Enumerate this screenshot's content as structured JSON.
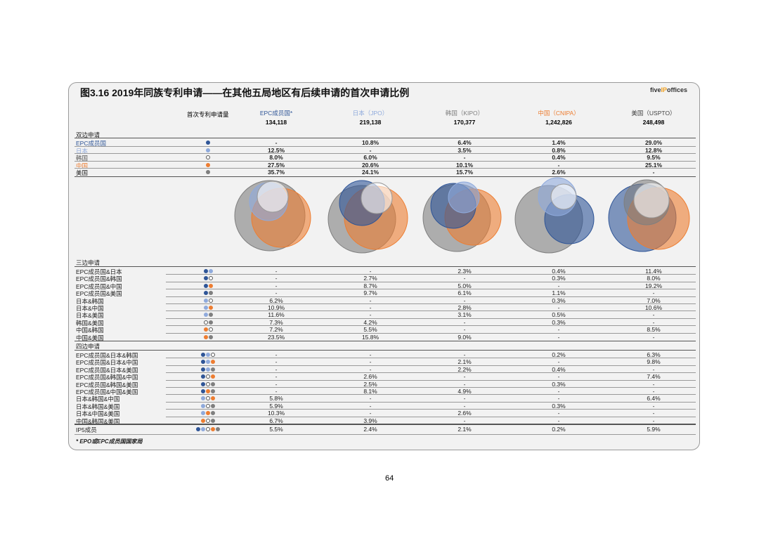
{
  "title": "图3.16 2019年同族专利申请——在其他五局地区有后续申请的首次申请比例",
  "logo": {
    "pre": "five",
    "ip": "IP",
    "post": "offices"
  },
  "header": {
    "label": "首次专利申请量",
    "columns": [
      {
        "name": "EPC成员国*",
        "count": "134,118",
        "color": "#2f5597"
      },
      {
        "name": "日本（JPO）",
        "count": "219,138",
        "color": "#8faadc"
      },
      {
        "name": "韩国（KIPO）",
        "count": "170,377",
        "color": "#7f7f7f"
      },
      {
        "name": "中国（CNIPA）",
        "count": "1,242,826",
        "color": "#ed7d31"
      },
      {
        "name": "美国（USPTO）",
        "count": "248,498",
        "color": "#404040"
      }
    ]
  },
  "colors": {
    "E": "#2f5597",
    "J": "#8faadc",
    "K": "#ffffff",
    "C": "#ed7d31",
    "U": "#7f7f7f"
  },
  "sections": [
    {
      "title": "双边申请",
      "rows": [
        {
          "label": "EPC成员国",
          "dots": "E",
          "values": [
            "-",
            "10.8%",
            "6.4%",
            "1.4%",
            "29.0%"
          ],
          "color": "#2f5597"
        },
        {
          "label": "日本",
          "dots": "J",
          "values": [
            "12.5%",
            "-",
            "3.5%",
            "0.8%",
            "12.8%"
          ],
          "color": "#8faadc"
        },
        {
          "label": "韩国",
          "dots": "K",
          "values": [
            "8.0%",
            "6.0%",
            "-",
            "0.4%",
            "9.5%"
          ],
          "color": "#555"
        },
        {
          "label": "中国",
          "dots": "C",
          "values": [
            "27.5%",
            "20.6%",
            "10.1%",
            "-",
            "25.1%"
          ],
          "color": "#ed7d31"
        },
        {
          "label": "美国",
          "dots": "U",
          "values": [
            "35.7%",
            "24.1%",
            "15.7%",
            "2.6%",
            "-"
          ],
          "color": "#222"
        }
      ]
    },
    {
      "title": "三边申请",
      "rows": [
        {
          "label": "EPC成员国&日本",
          "dots": "EJ",
          "values": [
            "-",
            "-",
            "2.3%",
            "0.4%",
            "11.4%"
          ]
        },
        {
          "label": "EPC成员国&韩国",
          "dots": "EK",
          "values": [
            "-",
            "2.7%",
            "-",
            "0.3%",
            "8.0%"
          ]
        },
        {
          "label": "EPC成员国&中国",
          "dots": "EC",
          "values": [
            "-",
            "8.7%",
            "5.0%",
            "-",
            "19.2%"
          ]
        },
        {
          "label": "EPC成员国&美国",
          "dots": "EU",
          "values": [
            "-",
            "9.7%",
            "6.1%",
            "1.1%",
            "-"
          ]
        },
        {
          "label": "日本&韩国",
          "dots": "JK",
          "values": [
            "6.2%",
            "-",
            "-",
            "0.3%",
            "7.0%"
          ]
        },
        {
          "label": "日本&中国",
          "dots": "JC",
          "values": [
            "10.9%",
            "-",
            "2.8%",
            "-",
            "10.6%"
          ]
        },
        {
          "label": "日本&美国",
          "dots": "JU",
          "values": [
            "11.6%",
            "-",
            "3.1%",
            "0.5%",
            "-"
          ]
        },
        {
          "label": "韩国&美国",
          "dots": "KU",
          "values": [
            "7.3%",
            "4.2%",
            "-",
            "0.3%",
            "-"
          ]
        },
        {
          "label": "中国&韩国",
          "dots": "CK",
          "values": [
            "7.2%",
            "5.5%",
            "-",
            "-",
            "8.5%"
          ]
        },
        {
          "label": "中国&美国",
          "dots": "CU",
          "values": [
            "23.5%",
            "15.8%",
            "9.0%",
            "-",
            "-"
          ]
        }
      ]
    },
    {
      "title": "四边申请",
      "rows": [
        {
          "label": "EPC成员国&日本&韩国",
          "dots": "EJK",
          "values": [
            "-",
            "-",
            "-",
            "0.2%",
            "6.3%"
          ]
        },
        {
          "label": "EPC成员国&日本&中国",
          "dots": "EJC",
          "values": [
            "-",
            "-",
            "2.1%",
            "-",
            "9.8%"
          ]
        },
        {
          "label": "EPC成员国&日本&美国",
          "dots": "EJU",
          "values": [
            "-",
            "-",
            "2.2%",
            "0.4%",
            "-"
          ]
        },
        {
          "label": "EPC成员国&韩国&中国",
          "dots": "EKC",
          "values": [
            "-",
            "2.6%",
            "-",
            "-",
            "7.4%"
          ]
        },
        {
          "label": "EPC成员国&韩国&美国",
          "dots": "EKU",
          "values": [
            "-",
            "2.5%",
            "-",
            "0.3%",
            "-"
          ]
        },
        {
          "label": "EPC成员国&中国&美国",
          "dots": "ECU",
          "values": [
            "-",
            "8.1%",
            "4.9%",
            "-",
            "-"
          ]
        },
        {
          "label": "日本&韩国&中国",
          "dots": "JKC",
          "values": [
            "5.8%",
            "-",
            "-",
            "-",
            "6.4%"
          ]
        },
        {
          "label": "日本&韩国&美国",
          "dots": "JKU",
          "values": [
            "5.9%",
            "-",
            "-",
            "0.3%",
            "-"
          ]
        },
        {
          "label": "日本&中国&美国",
          "dots": "JCU",
          "values": [
            "10.3%",
            "-",
            "2.6%",
            "-",
            "-"
          ]
        },
        {
          "label": "中国&韩国&美国",
          "dots": "CKU",
          "values": [
            "6.7%",
            "3.9%",
            "-",
            "-",
            "-"
          ]
        }
      ]
    }
  ],
  "ip5": {
    "label": "IP5成员",
    "dots": "EJKCU",
    "values": [
      "5.5%",
      "2.4%",
      "2.1%",
      "0.2%",
      "5.9%"
    ]
  },
  "footnote": "* EPO或EPC成员国国家局",
  "page_number": "64"
}
